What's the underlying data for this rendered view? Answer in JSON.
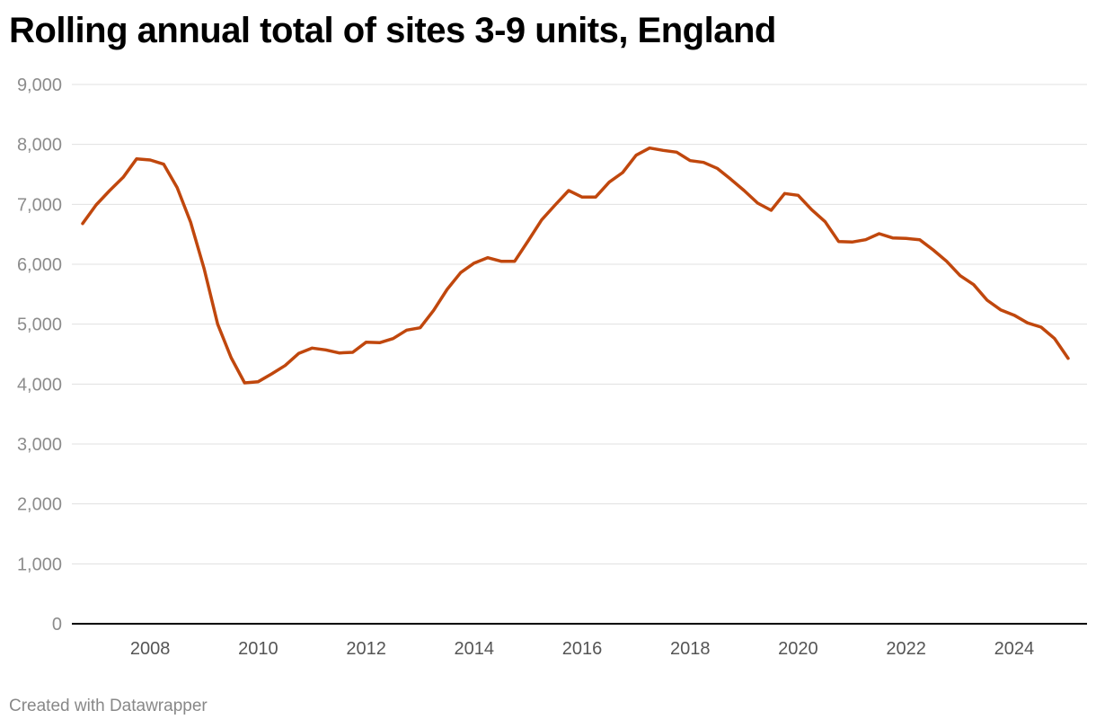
{
  "title": "Rolling annual total of sites 3-9 units, England",
  "footer": "Created with Datawrapper",
  "colors": {
    "line": "#c0470d",
    "grid": "#e0e0e0",
    "axis": "#000000"
  },
  "chart_data": {
    "type": "line",
    "title": "Rolling annual total of sites 3-9 units, England",
    "xlabel": "",
    "ylabel": "",
    "ylim": [
      0,
      9000
    ],
    "xlim": [
      2006.55,
      2025.35
    ],
    "grid": true,
    "y_ticks": [
      0,
      1000,
      2000,
      3000,
      4000,
      5000,
      6000,
      7000,
      8000,
      9000
    ],
    "y_tick_labels": [
      "0",
      "1,000",
      "2,000",
      "3,000",
      "4,000",
      "5,000",
      "6,000",
      "7,000",
      "8,000",
      "9,000"
    ],
    "x_ticks": [
      2008,
      2010,
      2012,
      2014,
      2016,
      2018,
      2020,
      2022,
      2024
    ],
    "x_tick_labels": [
      "2008",
      "2010",
      "2012",
      "2014",
      "2016",
      "2018",
      "2020",
      "2022",
      "2024"
    ],
    "series": [
      {
        "x": [
          2006.75,
          2007.0,
          2007.25,
          2007.5,
          2007.75,
          2008.0,
          2008.25,
          2008.5,
          2008.75,
          2009.0,
          2009.25,
          2009.5,
          2009.75,
          2010.0,
          2010.25,
          2010.5,
          2010.75,
          2011.0,
          2011.25,
          2011.5,
          2011.75,
          2012.0,
          2012.25,
          2012.5,
          2012.75,
          2013.0,
          2013.25,
          2013.5,
          2013.75,
          2014.0,
          2014.25,
          2014.5,
          2014.75,
          2015.0,
          2015.25,
          2015.5,
          2015.75,
          2016.0,
          2016.25,
          2016.5,
          2016.75,
          2017.0,
          2017.25,
          2017.5,
          2017.75,
          2018.0,
          2018.25,
          2018.5,
          2018.75,
          2019.0,
          2019.25,
          2019.5,
          2019.75,
          2020.0,
          2020.25,
          2020.5,
          2020.75,
          2021.0,
          2021.25,
          2021.5,
          2021.75,
          2022.0,
          2022.25,
          2022.5,
          2022.75,
          2023.0,
          2023.25,
          2023.5,
          2023.75,
          2024.0,
          2024.25,
          2024.5,
          2024.75,
          2025.0
        ],
        "values": [
          6680,
          6990,
          7230,
          7450,
          7760,
          7740,
          7670,
          7280,
          6700,
          5920,
          5000,
          4440,
          4020,
          4040,
          4170,
          4310,
          4510,
          4600,
          4570,
          4520,
          4530,
          4700,
          4690,
          4760,
          4900,
          4940,
          5230,
          5580,
          5860,
          6020,
          6110,
          6050,
          6050,
          6390,
          6740,
          6990,
          7230,
          7120,
          7120,
          7370,
          7530,
          7820,
          7940,
          7900,
          7870,
          7730,
          7700,
          7600,
          7420,
          7230,
          7020,
          6900,
          7180,
          7150,
          6910,
          6710,
          6380,
          6370,
          6410,
          6510,
          6440,
          6430,
          6410,
          6240,
          6050,
          5810,
          5660,
          5400,
          5240,
          5150,
          5020,
          4950,
          4760,
          4430
        ]
      }
    ]
  }
}
